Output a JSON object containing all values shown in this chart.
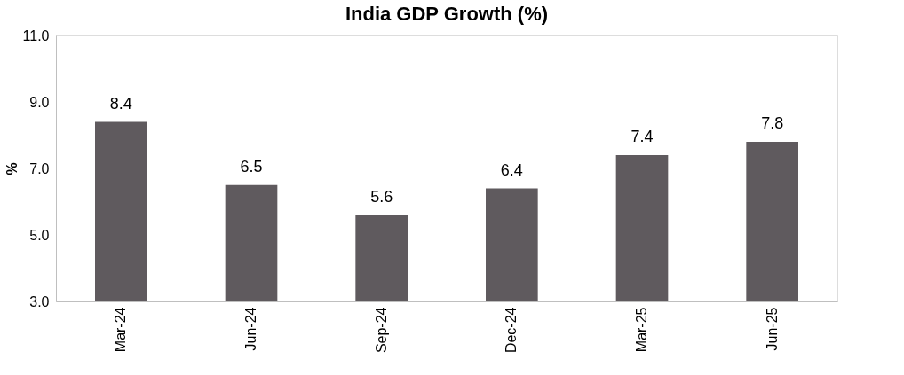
{
  "chart_data": {
    "type": "bar",
    "title": "India GDP Growth (%)",
    "ylabel": "%",
    "categories": [
      "Mar-24",
      "Jun-24",
      "Sep-24",
      "Dec-24",
      "Mar-25",
      "Jun-25"
    ],
    "values": [
      8.4,
      6.5,
      5.6,
      6.4,
      7.4,
      7.8
    ],
    "color": "#5f5a5e",
    "ylim": [
      3,
      11
    ],
    "yticks": [
      {
        "value": 3,
        "label": "3.0"
      },
      {
        "value": 5,
        "label": "5.0"
      },
      {
        "value": 7,
        "label": "7.0"
      },
      {
        "value": 9,
        "label": "9.0"
      },
      {
        "value": 11,
        "label": "11.0"
      }
    ],
    "data_labels": true
  }
}
